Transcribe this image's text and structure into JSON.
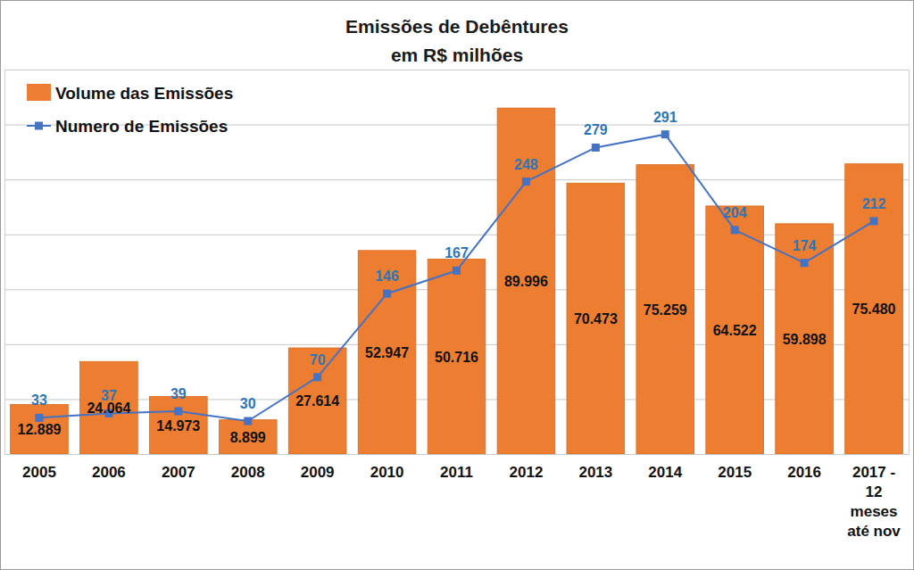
{
  "chart_data": {
    "type": "bar",
    "title": "Emissões de Debêntures",
    "subtitle": "em R$ milhões",
    "categories": [
      "2005",
      "2006",
      "2007",
      "2008",
      "2009",
      "2010",
      "2011",
      "2012",
      "2013",
      "2014",
      "2015",
      "2016",
      "2017 - 12 meses até nov"
    ],
    "series": [
      {
        "name": "Volume das Emissões",
        "type": "bar",
        "color": "#ED7D31",
        "values": [
          12889,
          24064,
          14973,
          8899,
          27614,
          52947,
          50716,
          89996,
          70473,
          75259,
          64522,
          59898,
          75480
        ],
        "value_labels": [
          "12.889",
          "24.064",
          "14.973",
          "8.899",
          "27.614",
          "52.947",
          "50.716",
          "89.996",
          "70.473",
          "75.259",
          "64.522",
          "59.898",
          "75.480"
        ]
      },
      {
        "name": "Numero de Emissões",
        "type": "line",
        "color": "#4472C4",
        "marker": "square",
        "line_style": "solid",
        "axis": "y2",
        "values": [
          33,
          37,
          39,
          30,
          70,
          146,
          167,
          248,
          279,
          291,
          204,
          174,
          212
        ]
      }
    ],
    "ylim": [
      0,
      100000
    ],
    "yticks": [
      0,
      100000
    ],
    "y2lim": [
      0,
      350
    ],
    "y2ticks": [
      0,
      50,
      100,
      150,
      200,
      250,
      300,
      350
    ],
    "grid": true,
    "legend": "upper left",
    "data_labels": true,
    "tick_labels": "x"
  }
}
